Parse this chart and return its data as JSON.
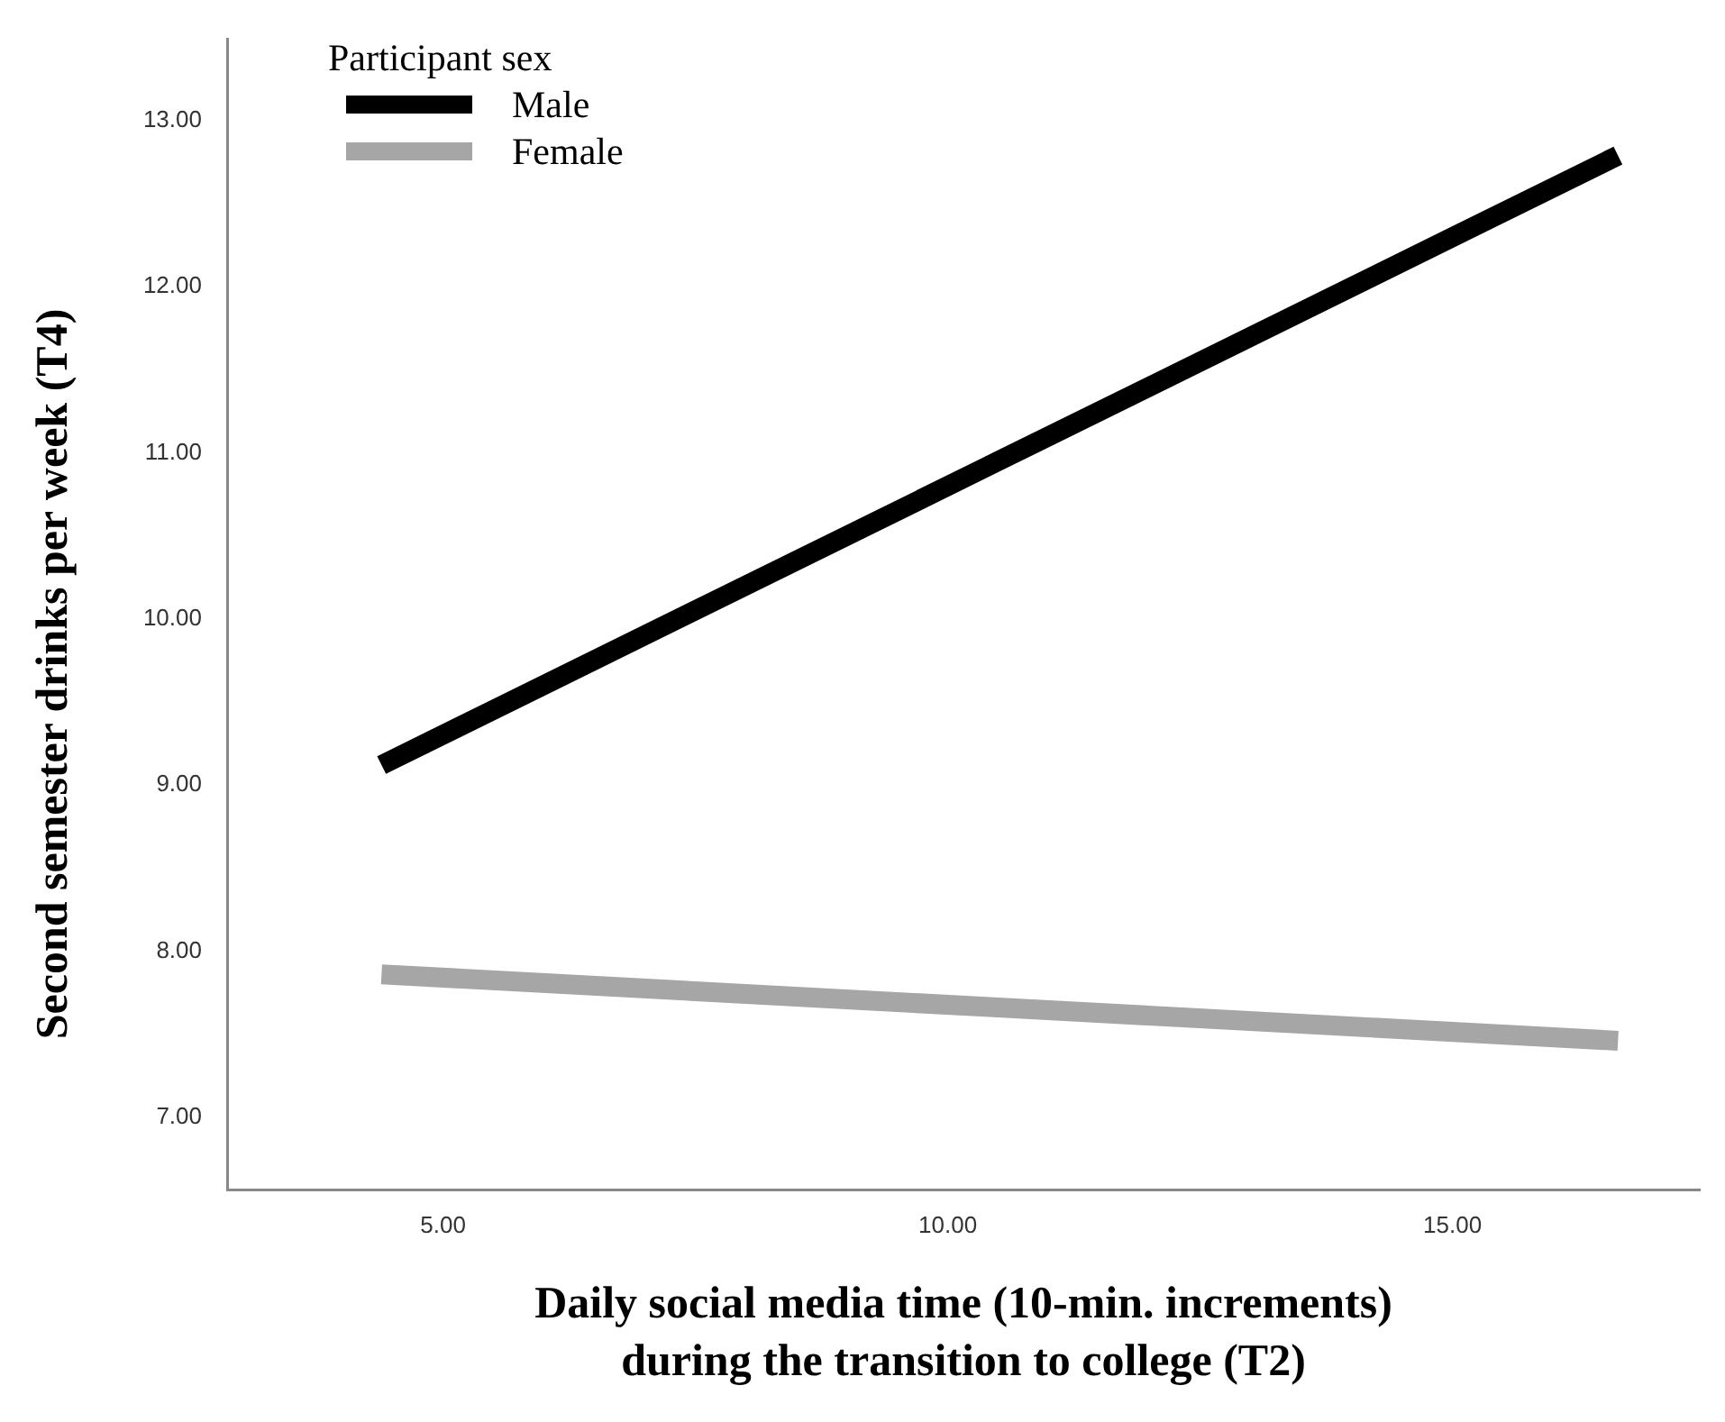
{
  "chart_data": {
    "type": "line",
    "xlabel": "Daily social media time (10-min. increments)\nduring the transition to college (T2)",
    "ylabel": "Second semester drinks per week (T4)",
    "legend_title": "Participant sex",
    "legend": "top left",
    "grid": false,
    "marker": "none",
    "line_style": "solid",
    "xlim": [
      2.86,
      17.45
    ],
    "xticks": [
      {
        "value": 5,
        "label": "5.00"
      },
      {
        "value": 10,
        "label": "10.00"
      },
      {
        "value": 15,
        "label": "15.00"
      }
    ],
    "ylim": [
      6.56,
      13.49
    ],
    "yticks": [
      {
        "value": 7,
        "label": "7.00"
      },
      {
        "value": 8,
        "label": "8.00"
      },
      {
        "value": 9,
        "label": "9.00"
      },
      {
        "value": 10,
        "label": "10.00"
      },
      {
        "value": 11,
        "label": "11.00"
      },
      {
        "value": 12,
        "label": "12.00"
      },
      {
        "value": 13,
        "label": "13.00"
      }
    ],
    "series": [
      {
        "name": "Male",
        "color": "#000000",
        "x": [
          4.39,
          10.5,
          16.64
        ],
        "values": [
          9.12,
          10.95,
          12.79
        ]
      },
      {
        "name": "Female",
        "color": "#a6a6a6",
        "x": [
          4.39,
          10.5,
          16.64
        ],
        "values": [
          7.86,
          7.66,
          7.46
        ]
      }
    ]
  }
}
